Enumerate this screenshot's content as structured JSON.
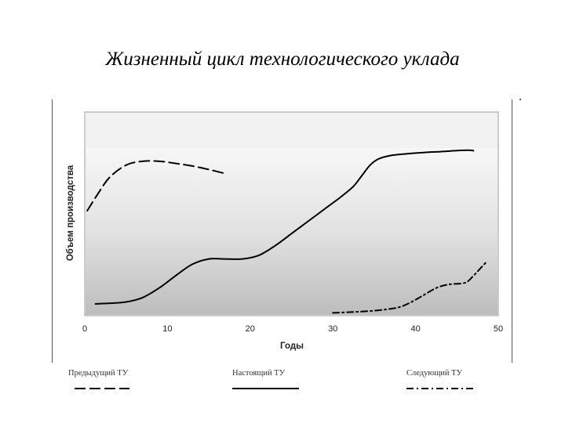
{
  "title": "Жизненный цикл технологического уклада",
  "chart_data": {
    "type": "line",
    "title": "Жизненный цикл технологического уклада",
    "xlabel": "Годы",
    "ylabel": "Объем производства",
    "xlim": [
      0,
      50
    ],
    "x_ticks": [
      0,
      10,
      20,
      30,
      40,
      50
    ],
    "y_ticks": [],
    "grid": false,
    "legend_position": "bottom",
    "series": [
      {
        "name": "Предыдущий ТУ",
        "style": "dashed",
        "points": [
          [
            0.3,
            0.54
          ],
          [
            1.5,
            0.63
          ],
          [
            3,
            0.73
          ],
          [
            5,
            0.8
          ],
          [
            7,
            0.822
          ],
          [
            9,
            0.822
          ],
          [
            11,
            0.81
          ],
          [
            13,
            0.795
          ],
          [
            15,
            0.775
          ],
          [
            17,
            0.752
          ]
        ]
      },
      {
        "name": "Настоящий ТУ",
        "style": "solid",
        "points": [
          [
            1.3,
            0.009
          ],
          [
            3,
            0.013
          ],
          [
            5,
            0.02
          ],
          [
            7,
            0.045
          ],
          [
            9,
            0.1
          ],
          [
            11,
            0.17
          ],
          [
            13,
            0.235
          ],
          [
            15,
            0.265
          ],
          [
            17,
            0.265
          ],
          [
            19,
            0.265
          ],
          [
            21,
            0.285
          ],
          [
            23,
            0.34
          ],
          [
            25,
            0.41
          ],
          [
            27,
            0.48
          ],
          [
            29,
            0.55
          ],
          [
            31,
            0.62
          ],
          [
            32.5,
            0.68
          ],
          [
            33.5,
            0.74
          ],
          [
            34.5,
            0.8
          ],
          [
            35.5,
            0.835
          ],
          [
            37,
            0.855
          ],
          [
            39,
            0.865
          ],
          [
            41,
            0.872
          ],
          [
            43,
            0.877
          ],
          [
            45,
            0.883
          ],
          [
            46.5,
            0.885
          ],
          [
            47,
            0.882
          ]
        ]
      },
      {
        "name": "Следующий ТУ",
        "style": "dash-dot",
        "points": [
          [
            30,
            -0.042
          ],
          [
            32,
            -0.038
          ],
          [
            34,
            -0.033
          ],
          [
            36,
            -0.025
          ],
          [
            38,
            -0.01
          ],
          [
            39.5,
            0.02
          ],
          [
            41,
            0.06
          ],
          [
            42.5,
            0.1
          ],
          [
            44,
            0.12
          ],
          [
            46,
            0.13
          ],
          [
            47,
            0.17
          ],
          [
            48,
            0.22
          ],
          [
            48.5,
            0.245
          ]
        ]
      }
    ]
  }
}
